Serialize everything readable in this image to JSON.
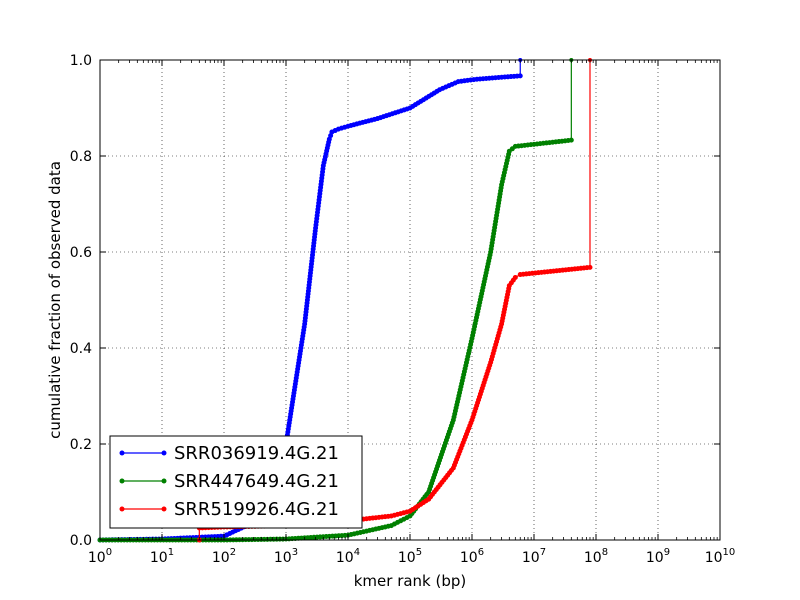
{
  "chart_data": {
    "type": "line",
    "title": "",
    "xlabel": "kmer rank (bp)",
    "ylabel": "cumulative fraction of observed data",
    "xscale": "log",
    "xlim": [
      1,
      10000000000
    ],
    "ylim": [
      0.0,
      1.0
    ],
    "grid": true,
    "legend_position": "lower-left",
    "x_ticks": [
      {
        "base": "10",
        "exp": "0"
      },
      {
        "base": "10",
        "exp": "1"
      },
      {
        "base": "10",
        "exp": "2"
      },
      {
        "base": "10",
        "exp": "3"
      },
      {
        "base": "10",
        "exp": "4"
      },
      {
        "base": "10",
        "exp": "5"
      },
      {
        "base": "10",
        "exp": "6"
      },
      {
        "base": "10",
        "exp": "7"
      },
      {
        "base": "10",
        "exp": "8"
      },
      {
        "base": "10",
        "exp": "9"
      },
      {
        "base": "10",
        "exp": "10"
      }
    ],
    "y_ticks": [
      "0.0",
      "0.2",
      "0.4",
      "0.6",
      "0.8",
      "1.0"
    ],
    "series": [
      {
        "name": "SRR036919.4G.21",
        "color": "#0000ff",
        "points": [
          [
            1,
            0.0
          ],
          [
            10,
            0.002
          ],
          [
            100,
            0.008
          ],
          [
            500,
            0.05
          ],
          [
            1000,
            0.2
          ],
          [
            2000,
            0.45
          ],
          [
            3000,
            0.65
          ],
          [
            4000,
            0.78
          ],
          [
            5000,
            0.835
          ],
          [
            5500,
            0.85
          ],
          [
            7000,
            0.856
          ],
          [
            10000,
            0.862
          ],
          [
            30000,
            0.878
          ],
          [
            100000,
            0.9
          ],
          [
            300000,
            0.938
          ],
          [
            600000,
            0.955
          ],
          [
            1200000,
            0.96
          ],
          [
            6000000,
            0.967
          ],
          [
            6000000,
            1.0
          ]
        ]
      },
      {
        "name": "SRR447649.4G.21",
        "color": "#008000",
        "points": [
          [
            1,
            0.0
          ],
          [
            100,
            0.0
          ],
          [
            1000,
            0.002
          ],
          [
            10000,
            0.01
          ],
          [
            50000,
            0.03
          ],
          [
            100000,
            0.05
          ],
          [
            200000,
            0.1
          ],
          [
            500000,
            0.25
          ],
          [
            1000000,
            0.42
          ],
          [
            2000000,
            0.6
          ],
          [
            3000000,
            0.74
          ],
          [
            4000000,
            0.81
          ],
          [
            5000000,
            0.82
          ],
          [
            40000000,
            0.833
          ],
          [
            40000000,
            1.0
          ]
        ]
      },
      {
        "name": "SRR519926.4G.21",
        "color": "#ff0000",
        "points": [
          [
            40,
            0.0
          ],
          [
            40,
            0.025
          ],
          [
            100,
            0.027
          ],
          [
            1000,
            0.03
          ],
          [
            10000,
            0.04
          ],
          [
            50000,
            0.05
          ],
          [
            100000,
            0.06
          ],
          [
            200000,
            0.085
          ],
          [
            500000,
            0.15
          ],
          [
            1000000,
            0.25
          ],
          [
            2000000,
            0.37
          ],
          [
            3000000,
            0.45
          ],
          [
            4000000,
            0.53
          ],
          [
            5000000,
            0.547
          ],
          [
            6000000,
            0.553
          ],
          [
            80000000,
            0.568
          ],
          [
            80000000,
            1.0
          ]
        ]
      }
    ]
  }
}
